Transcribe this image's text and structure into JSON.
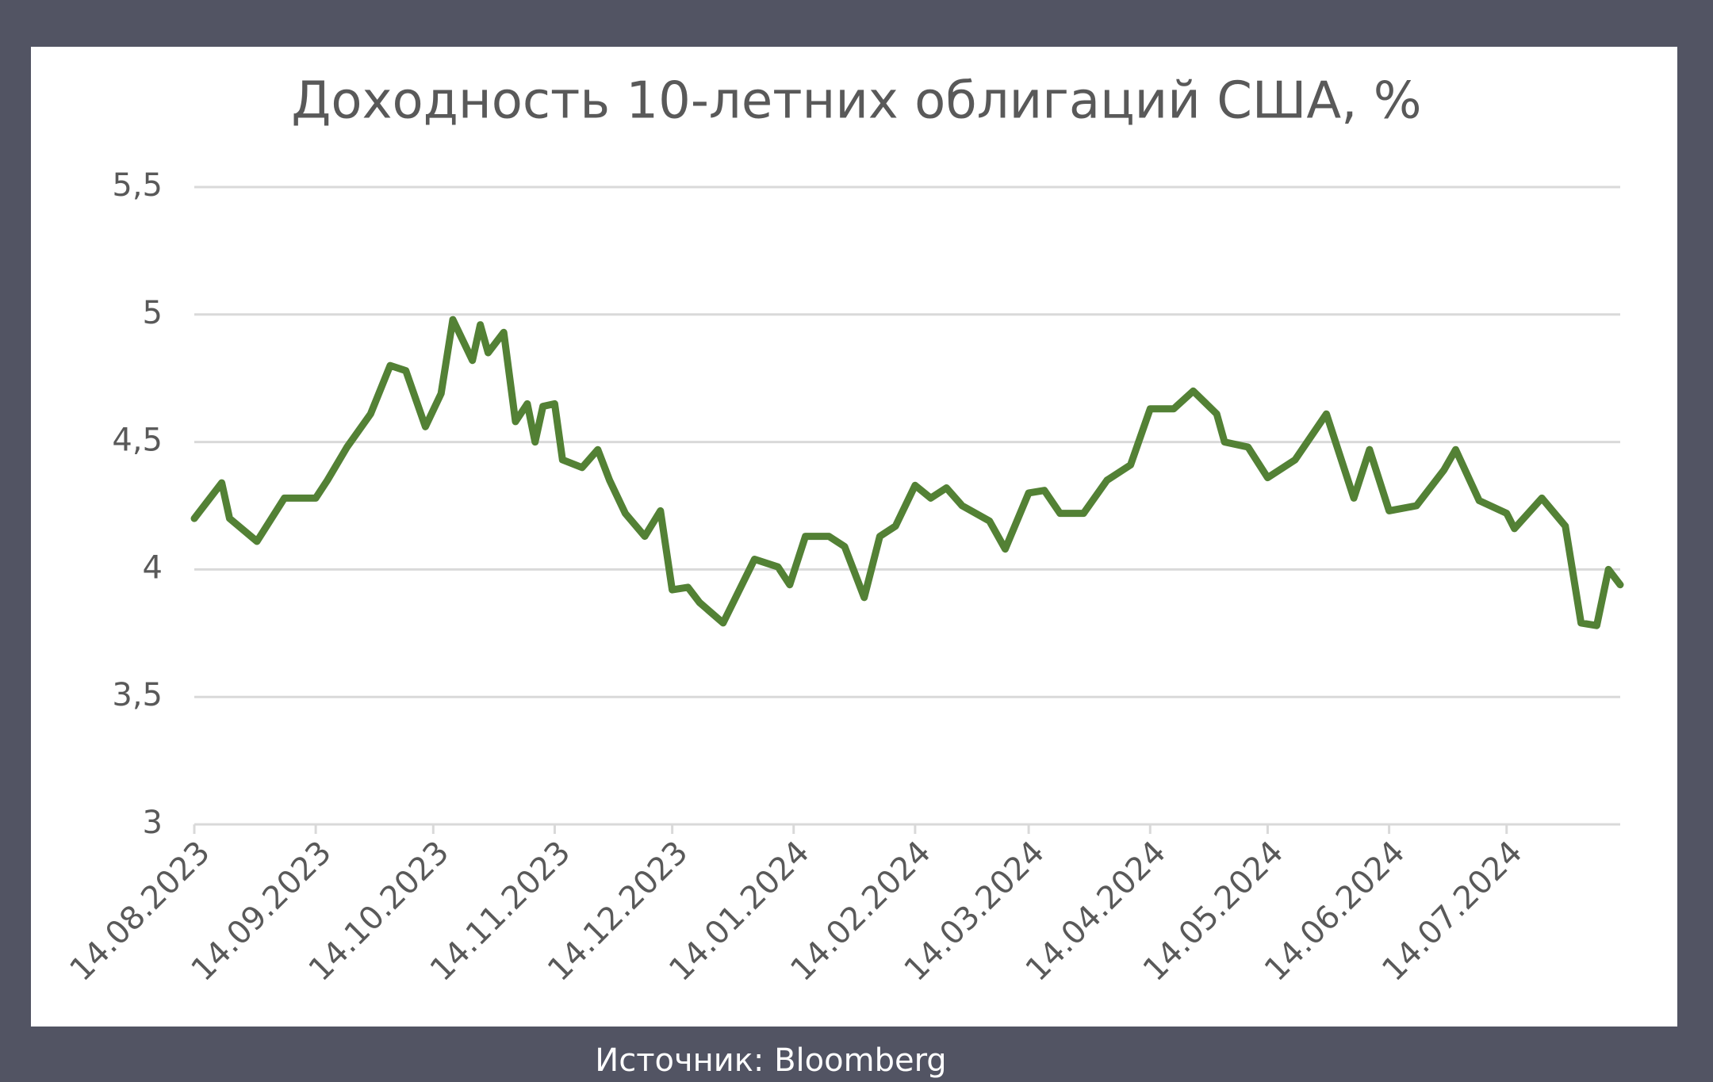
{
  "chart_data": {
    "type": "line",
    "title": "Доходность 10-летних облигаций США, %",
    "source": "Источник: Bloomberg",
    "x": [
      "14.08.2023",
      "21.08.2023",
      "23.08.2023",
      "30.08.2023",
      "06.09.2023",
      "14.09.2023",
      "17.09.2023",
      "22.09.2023",
      "28.09.2023",
      "03.10.2023",
      "07.10.2023",
      "12.10.2023",
      "16.10.2023",
      "19.10.2023",
      "24.10.2023",
      "26.10.2023",
      "28.10.2023",
      "01.11.2023",
      "04.11.2023",
      "07.11.2023",
      "09.11.2023",
      "11.11.2023",
      "14.11.2023",
      "16.11.2023",
      "21.11.2023",
      "25.11.2023",
      "28.11.2023",
      "02.12.2023",
      "07.12.2023",
      "11.12.2023",
      "14.12.2023",
      "18.12.2023",
      "21.12.2023",
      "27.12.2023",
      "04.01.2024",
      "10.01.2024",
      "13.01.2024",
      "17.01.2024",
      "23.01.2024",
      "27.01.2024",
      "01.02.2024",
      "05.02.2024",
      "09.02.2024",
      "14.02.2024",
      "18.02.2024",
      "22.02.2024",
      "26.02.2024",
      "04.03.2024",
      "08.03.2024",
      "14.03.2024",
      "18.03.2024",
      "22.03.2024",
      "28.03.2024",
      "03.04.2024",
      "09.04.2024",
      "14.04.2024",
      "20.04.2024",
      "25.04.2024",
      "01.05.2024",
      "03.05.2024",
      "09.05.2024",
      "14.05.2024",
      "21.05.2024",
      "29.05.2024",
      "05.06.2024",
      "09.06.2024",
      "14.06.2024",
      "21.06.2024",
      "28.06.2024",
      "01.07.2024",
      "07.07.2024",
      "14.07.2024",
      "16.07.2024",
      "23.07.2024",
      "29.07.2024",
      "02.08.2024",
      "06.08.2024",
      "09.08.2024",
      "12.08.2024"
    ],
    "series": [
      {
        "color": "#538135",
        "values": [
          4.2,
          4.34,
          4.2,
          4.11,
          4.28,
          4.28,
          4.35,
          4.48,
          4.61,
          4.8,
          4.78,
          4.56,
          4.69,
          4.98,
          4.82,
          4.96,
          4.85,
          4.93,
          4.58,
          4.65,
          4.5,
          4.64,
          4.65,
          4.43,
          4.4,
          4.47,
          4.35,
          4.22,
          4.13,
          4.23,
          3.92,
          3.93,
          3.87,
          3.79,
          4.04,
          4.01,
          3.94,
          4.13,
          4.13,
          4.09,
          3.89,
          4.13,
          4.17,
          4.33,
          4.28,
          4.32,
          4.25,
          4.19,
          4.08,
          4.3,
          4.31,
          4.22,
          4.22,
          4.35,
          4.41,
          4.63,
          4.63,
          4.7,
          4.61,
          4.5,
          4.48,
          4.36,
          4.43,
          4.61,
          4.28,
          4.47,
          4.23,
          4.25,
          4.39,
          4.47,
          4.27,
          4.22,
          4.16,
          4.28,
          4.17,
          3.79,
          3.78,
          4.0,
          3.94
        ]
      }
    ],
    "xlim": [
      "14.08.2023",
      "12.08.2024"
    ],
    "xticks": [
      "14.08.2023",
      "14.09.2023",
      "14.10.2023",
      "14.11.2023",
      "14.12.2023",
      "14.01.2024",
      "14.02.2024",
      "14.03.2024",
      "14.04.2024",
      "14.05.2024",
      "14.06.2024",
      "14.07.2024"
    ],
    "ylim": [
      3,
      5.5
    ],
    "yticks": [
      3,
      {
        "value": 3.5,
        "label": "3,5"
      },
      4,
      {
        "value": 4.5,
        "label": "4,5"
      },
      5,
      {
        "value": 5.5,
        "label": "5,5"
      }
    ],
    "grid": true
  }
}
